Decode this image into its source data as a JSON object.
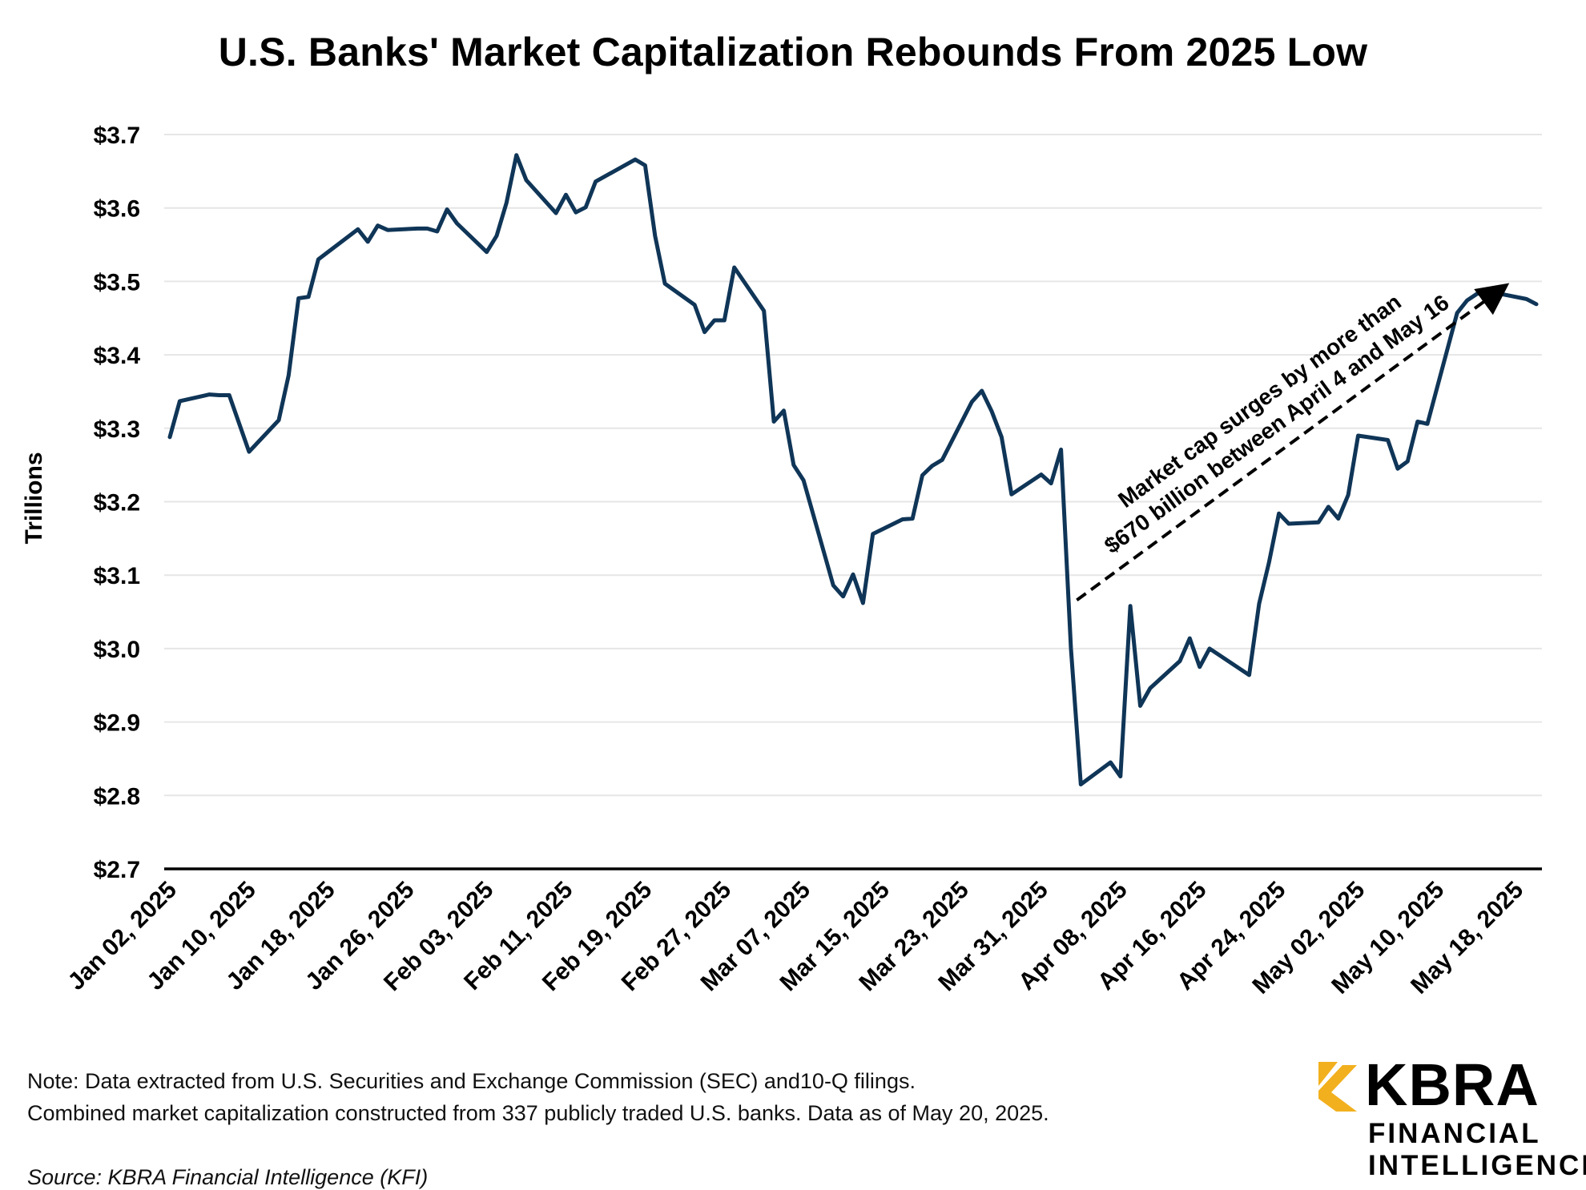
{
  "title": "U.S. Banks' Market Capitalization Rebounds From 2025 Low",
  "note_line_1": "Note: Data extracted from U.S. Securities and Exchange Commission (SEC) and10-Q filings.",
  "note_line_2": "Combined market capitalization constructed from 337 publicly traded U.S. banks. Data as of May 20, 2025.",
  "source": "Source: KBRA Financial Intelligence (KFI)",
  "logo": {
    "word": "KBRA",
    "line1": "FINANCIAL",
    "line2": "INTELLIGENCE",
    "accent": "#F2B01E"
  },
  "colors": {
    "line": "#0F3557",
    "axis": "#000000",
    "grid": "#E6E6E6"
  },
  "chart_data": {
    "type": "line",
    "ylabel": "Trillions",
    "xlabel": "",
    "ylim": [
      2.7,
      3.7
    ],
    "y_ticks": [
      "$2.7",
      "$2.8",
      "$2.9",
      "$3.0",
      "$3.1",
      "$3.2",
      "$3.3",
      "$3.4",
      "$3.5",
      "$3.6",
      "$3.7"
    ],
    "x_ticks": [
      "Jan 02, 2025",
      "Jan 10, 2025",
      "Jan 18, 2025",
      "Jan 26, 2025",
      "Feb 03, 2025",
      "Feb 11, 2025",
      "Feb 19, 2025",
      "Feb 27, 2025",
      "Mar 07, 2025",
      "Mar 15, 2025",
      "Mar 23, 2025",
      "Mar 31, 2025",
      "Apr 08, 2025",
      "Apr 16, 2025",
      "Apr 24, 2025",
      "May 02, 2025",
      "May 10, 2025",
      "May 18, 2025"
    ],
    "grid": true,
    "legend": "none",
    "series": [
      {
        "points": [
          [
            "2025-01-02",
            3.288
          ],
          [
            "2025-01-03",
            3.337
          ],
          [
            "2025-01-06",
            3.346
          ],
          [
            "2025-01-07",
            3.345
          ],
          [
            "2025-01-08",
            3.345
          ],
          [
            "2025-01-10",
            3.268
          ],
          [
            "2025-01-13",
            3.311
          ],
          [
            "2025-01-14",
            3.372
          ],
          [
            "2025-01-15",
            3.477
          ],
          [
            "2025-01-16",
            3.479
          ],
          [
            "2025-01-17",
            3.53
          ],
          [
            "2025-01-21",
            3.571
          ],
          [
            "2025-01-22",
            3.554
          ],
          [
            "2025-01-23",
            3.576
          ],
          [
            "2025-01-24",
            3.57
          ],
          [
            "2025-01-27",
            3.572
          ],
          [
            "2025-01-28",
            3.572
          ],
          [
            "2025-01-29",
            3.568
          ],
          [
            "2025-01-30",
            3.598
          ],
          [
            "2025-01-31",
            3.579
          ],
          [
            "2025-02-03",
            3.54
          ],
          [
            "2025-02-04",
            3.562
          ],
          [
            "2025-02-05",
            3.607
          ],
          [
            "2025-02-06",
            3.672
          ],
          [
            "2025-02-07",
            3.638
          ],
          [
            "2025-02-10",
            3.593
          ],
          [
            "2025-02-11",
            3.618
          ],
          [
            "2025-02-12",
            3.594
          ],
          [
            "2025-02-13",
            3.601
          ],
          [
            "2025-02-14",
            3.636
          ],
          [
            "2025-02-18",
            3.666
          ],
          [
            "2025-02-19",
            3.658
          ],
          [
            "2025-02-20",
            3.562
          ],
          [
            "2025-02-21",
            3.497
          ],
          [
            "2025-02-24",
            3.468
          ],
          [
            "2025-02-25",
            3.431
          ],
          [
            "2025-02-26",
            3.447
          ],
          [
            "2025-02-27",
            3.447
          ],
          [
            "2025-02-28",
            3.519
          ],
          [
            "2025-03-03",
            3.46
          ],
          [
            "2025-03-04",
            3.309
          ],
          [
            "2025-03-05",
            3.324
          ],
          [
            "2025-03-06",
            3.25
          ],
          [
            "2025-03-07",
            3.229
          ],
          [
            "2025-03-10",
            3.086
          ],
          [
            "2025-03-11",
            3.071
          ],
          [
            "2025-03-12",
            3.101
          ],
          [
            "2025-03-13",
            3.062
          ],
          [
            "2025-03-14",
            3.156
          ],
          [
            "2025-03-17",
            3.176
          ],
          [
            "2025-03-18",
            3.177
          ],
          [
            "2025-03-19",
            3.236
          ],
          [
            "2025-03-20",
            3.249
          ],
          [
            "2025-03-21",
            3.257
          ],
          [
            "2025-03-24",
            3.336
          ],
          [
            "2025-03-25",
            3.351
          ],
          [
            "2025-03-26",
            3.323
          ],
          [
            "2025-03-27",
            3.288
          ],
          [
            "2025-03-28",
            3.21
          ],
          [
            "2025-03-31",
            3.237
          ],
          [
            "2025-04-01",
            3.225
          ],
          [
            "2025-04-02",
            3.271
          ],
          [
            "2025-04-03",
            3.0
          ],
          [
            "2025-04-04",
            2.815
          ],
          [
            "2025-04-07",
            2.845
          ],
          [
            "2025-04-08",
            2.826
          ],
          [
            "2025-04-09",
            3.058
          ],
          [
            "2025-04-10",
            2.922
          ],
          [
            "2025-04-11",
            2.946
          ],
          [
            "2025-04-14",
            2.983
          ],
          [
            "2025-04-15",
            3.014
          ],
          [
            "2025-04-16",
            2.975
          ],
          [
            "2025-04-17",
            3.0
          ],
          [
            "2025-04-21",
            2.964
          ],
          [
            "2025-04-22",
            3.061
          ],
          [
            "2025-04-23",
            3.117
          ],
          [
            "2025-04-24",
            3.184
          ],
          [
            "2025-04-25",
            3.17
          ],
          [
            "2025-04-28",
            3.172
          ],
          [
            "2025-04-29",
            3.193
          ],
          [
            "2025-04-30",
            3.177
          ],
          [
            "2025-05-01",
            3.209
          ],
          [
            "2025-05-02",
            3.29
          ],
          [
            "2025-05-05",
            3.284
          ],
          [
            "2025-05-06",
            3.245
          ],
          [
            "2025-05-07",
            3.255
          ],
          [
            "2025-05-08",
            3.309
          ],
          [
            "2025-05-09",
            3.306
          ],
          [
            "2025-05-12",
            3.457
          ],
          [
            "2025-05-13",
            3.474
          ],
          [
            "2025-05-14",
            3.483
          ],
          [
            "2025-05-15",
            3.487
          ],
          [
            "2025-05-16",
            3.484
          ],
          [
            "2025-05-19",
            3.476
          ],
          [
            "2025-05-20",
            3.469
          ]
        ]
      }
    ],
    "annotation": {
      "line1": "Market cap surges by more than",
      "line2": "$670 billion between April 4 and May 16",
      "arrow_from": [
        "2025-04-04",
        3.066
      ],
      "arrow_to": [
        "2025-05-16",
        3.49
      ]
    }
  }
}
